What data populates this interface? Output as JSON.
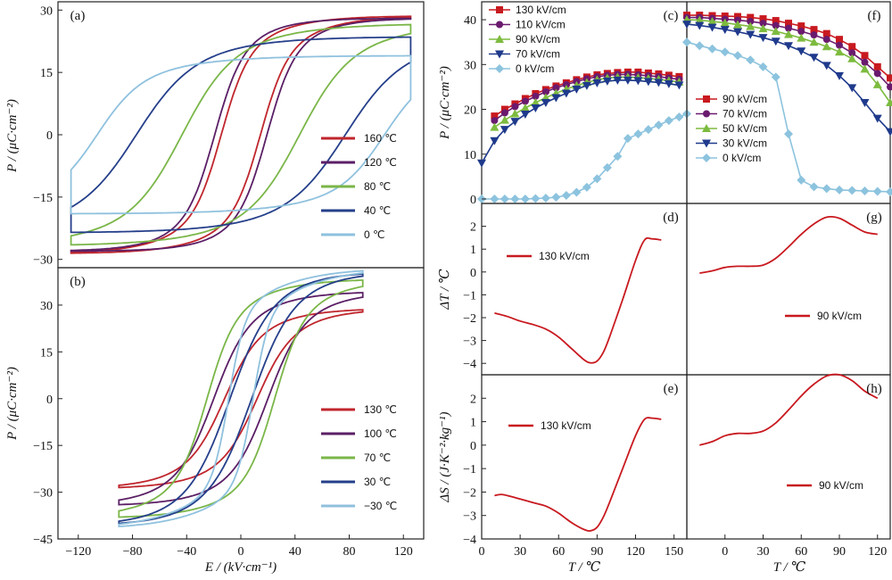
{
  "colors": {
    "c160": "#c0262d",
    "c120": "#5b1f66",
    "c80": "#7ab648",
    "c40": "#253f8a",
    "c0": "#8fc1de",
    "red": "#c8191f",
    "purple": "#6a1a6e",
    "green": "#7dbb3f",
    "navy": "#1f3a8c",
    "lightblue": "#8cc3de"
  },
  "chart_data": [
    {
      "id": "a",
      "type": "line",
      "panel_label": "(a)",
      "xlim": [
        -140,
        140
      ],
      "ylim": [
        -32,
        32
      ],
      "xticks": [],
      "yticks": [
        "−30",
        "−15",
        "0",
        "15",
        "30"
      ],
      "ytick_values": [
        -30,
        -15,
        0,
        15,
        30
      ],
      "ylabel": "P / (μC·cm⁻²)",
      "xlabel": "",
      "legend": {
        "position": "lower-right"
      },
      "series": [
        {
          "name": "160 ℃",
          "color": "#c0262d",
          "emax": 130,
          "pmax": 28.5,
          "ec": 15,
          "w": 5,
          "k": 0.03,
          "bg": 0.0
        },
        {
          "name": "120 ℃",
          "color": "#5b1f66",
          "emax": 130,
          "pmax": 28.0,
          "ec": 20,
          "w": 5,
          "k": 0.035,
          "bg": 0.0
        },
        {
          "name": "80 ℃",
          "color": "#7ab648",
          "emax": 130,
          "pmax": 26.5,
          "ec": 45,
          "w": 9,
          "k": 0.02,
          "bg": 0.0
        },
        {
          "name": "40 ℃",
          "color": "#253f8a",
          "emax": 130,
          "pmax": 23.5,
          "ec": 80,
          "w": 10,
          "k": 0.02,
          "bg": 0.0
        },
        {
          "name": "0 ℃",
          "color": "#8fc1de",
          "emax": 130,
          "pmax": 19.0,
          "ec": 110,
          "w": 8,
          "k": 0.02,
          "bg": 0.0
        }
      ]
    },
    {
      "id": "b",
      "type": "line",
      "panel_label": "(b)",
      "xlim": [
        -135,
        135
      ],
      "ylim": [
        -45,
        42
      ],
      "xticks": [
        "−120",
        "−80",
        "−40",
        "0",
        "40",
        "80",
        "120"
      ],
      "xtick_values": [
        -120,
        -80,
        -40,
        0,
        40,
        80,
        120
      ],
      "yticks": [
        "−45",
        "−30",
        "−15",
        "0",
        "15",
        "30"
      ],
      "ytick_values": [
        -45,
        -30,
        -15,
        0,
        15,
        30
      ],
      "xlabel": "E / (kV·cm⁻¹)",
      "ylabel": "P / (μC·cm⁻²)",
      "legend": {
        "position": "lower-right"
      },
      "series": [
        {
          "name": "130 ℃",
          "color": "#c0262d",
          "emax": 90,
          "pmax": 28.5,
          "ec": 12,
          "w": 6,
          "k": 0.03,
          "bg": 0.1
        },
        {
          "name": "100 ℃",
          "color": "#5b1f66",
          "emax": 90,
          "pmax": 34.0,
          "ec": 20,
          "w": 6,
          "k": 0.03,
          "bg": 0.1
        },
        {
          "name": "70 ℃",
          "color": "#7ab648",
          "emax": 90,
          "pmax": 38.0,
          "ec": 25,
          "w": 5,
          "k": 0.03,
          "bg": 0.05
        },
        {
          "name": "30 ℃",
          "color": "#253f8a",
          "emax": 90,
          "pmax": 40.0,
          "ec": 8,
          "w": 7,
          "k": 0.03,
          "bg": 0.05
        },
        {
          "name": "−30 ℃",
          "color": "#8fc1de",
          "emax": 90,
          "pmax": 41.0,
          "ec": 9,
          "w": 3,
          "k": 0.03,
          "bg": 0.0
        }
      ]
    },
    {
      "id": "c",
      "type": "line",
      "panel_label": "(c)",
      "xlim": [
        0,
        160
      ],
      "ylim": [
        -1,
        44
      ],
      "xticks": [],
      "yticks": [
        "0",
        "10",
        "20",
        "30",
        "40"
      ],
      "ytick_values": [
        0,
        10,
        20,
        30,
        40
      ],
      "ylabel": "P / (μC·cm⁻²)",
      "legend": {
        "position": "top-left"
      },
      "series": [
        {
          "name": "130 kV/cm",
          "color": "#c8191f",
          "marker": "square",
          "x": [
            10,
            18,
            26,
            34,
            42,
            50,
            58,
            66,
            74,
            82,
            90,
            98,
            106,
            114,
            122,
            130,
            138,
            146,
            154
          ],
          "y": [
            18.5,
            20.0,
            21.2,
            22.4,
            23.5,
            24.4,
            25.2,
            25.9,
            26.6,
            27.2,
            27.7,
            28.0,
            28.2,
            28.3,
            28.3,
            28.1,
            27.9,
            27.6,
            27.3
          ]
        },
        {
          "name": "110 kV/cm",
          "color": "#6a1a6e",
          "marker": "circle",
          "x": [
            10,
            18,
            26,
            34,
            42,
            50,
            58,
            66,
            74,
            82,
            90,
            98,
            106,
            114,
            122,
            130,
            138,
            146,
            154
          ],
          "y": [
            17.5,
            19.2,
            20.6,
            21.8,
            22.9,
            23.9,
            24.8,
            25.5,
            26.2,
            26.8,
            27.3,
            27.6,
            27.8,
            27.8,
            27.7,
            27.5,
            27.3,
            27.0,
            26.7
          ]
        },
        {
          "name": "90 kV/cm",
          "color": "#7dbb3f",
          "marker": "triangle-up",
          "x": [
            10,
            18,
            26,
            34,
            42,
            50,
            58,
            66,
            74,
            82,
            90,
            98,
            106,
            114,
            122,
            130,
            138,
            146,
            154
          ],
          "y": [
            16.0,
            17.6,
            19.0,
            20.3,
            21.5,
            22.6,
            23.6,
            24.5,
            25.3,
            26.0,
            26.6,
            27.0,
            27.2,
            27.2,
            27.1,
            26.9,
            26.7,
            26.4,
            26.1
          ]
        },
        {
          "name": "70 kV/cm",
          "color": "#1f3a8c",
          "marker": "triangle-down",
          "x": [
            0,
            10,
            18,
            26,
            34,
            42,
            50,
            58,
            66,
            74,
            82,
            90,
            98,
            106,
            114,
            122,
            130,
            138,
            146,
            154
          ],
          "y": [
            8.0,
            13.0,
            15.5,
            17.3,
            18.9,
            20.3,
            21.5,
            22.6,
            23.6,
            24.5,
            25.3,
            25.9,
            26.3,
            26.5,
            26.5,
            26.4,
            26.2,
            26.0,
            25.7,
            25.4
          ]
        },
        {
          "name": "0 kV/cm",
          "color": "#8cc3de",
          "marker": "diamond",
          "x": [
            0,
            10,
            18,
            26,
            34,
            42,
            50,
            58,
            66,
            74,
            82,
            90,
            98,
            106,
            114,
            122,
            130,
            138,
            146,
            154,
            160
          ],
          "y": [
            0.0,
            0.0,
            0.0,
            0.0,
            0.0,
            0.1,
            0.2,
            0.4,
            0.8,
            1.5,
            2.6,
            4.5,
            7.0,
            9.5,
            13.5,
            14.5,
            15.5,
            16.5,
            17.5,
            18.3,
            19.0
          ]
        }
      ]
    },
    {
      "id": "f",
      "type": "line",
      "panel_label": "(f)",
      "xlim": [
        -30,
        130
      ],
      "ylim": [
        -1,
        44
      ],
      "xticks": [],
      "yticks": [],
      "legend": {
        "position": "center-left"
      },
      "series": [
        {
          "name": "90 kV/cm",
          "color": "#c8191f",
          "marker": "square",
          "x": [
            -30,
            -20,
            -10,
            0,
            10,
            20,
            30,
            40,
            50,
            60,
            70,
            80,
            90,
            100,
            110,
            120,
            130
          ],
          "y": [
            41.0,
            41.0,
            40.9,
            40.8,
            40.7,
            40.5,
            40.2,
            39.8,
            39.2,
            38.6,
            37.8,
            36.9,
            35.6,
            34.0,
            32.0,
            29.5,
            27.0
          ]
        },
        {
          "name": "70 kV/cm",
          "color": "#6a1a6e",
          "marker": "circle",
          "x": [
            -30,
            -20,
            -10,
            0,
            10,
            20,
            30,
            40,
            50,
            60,
            70,
            80,
            90,
            100,
            110,
            120,
            130
          ],
          "y": [
            40.5,
            40.5,
            40.3,
            40.1,
            39.9,
            39.6,
            39.2,
            38.7,
            38.1,
            37.4,
            36.6,
            35.6,
            34.3,
            32.6,
            30.5,
            28.0,
            25.0
          ]
        },
        {
          "name": "50 kV/cm",
          "color": "#7dbb3f",
          "marker": "triangle-up",
          "x": [
            -30,
            -20,
            -10,
            0,
            10,
            20,
            30,
            40,
            50,
            60,
            70,
            80,
            90,
            100,
            110,
            120,
            130
          ],
          "y": [
            40.0,
            39.9,
            39.6,
            39.3,
            38.9,
            38.5,
            38.0,
            37.4,
            36.7,
            35.9,
            35.0,
            34.0,
            32.8,
            31.3,
            29.0,
            25.5,
            21.5
          ]
        },
        {
          "name": "30 kV/cm",
          "color": "#1f3a8c",
          "marker": "triangle-down",
          "x": [
            -30,
            -20,
            -10,
            0,
            10,
            20,
            30,
            40,
            50,
            60,
            70,
            80,
            90,
            100,
            110,
            120,
            130
          ],
          "y": [
            39.0,
            38.7,
            38.3,
            37.8,
            37.3,
            36.7,
            36.0,
            35.2,
            34.2,
            33.0,
            31.6,
            29.8,
            27.5,
            24.8,
            21.5,
            18.0,
            15.0
          ]
        },
        {
          "name": "0 kV/cm",
          "color": "#8cc3de",
          "marker": "diamond",
          "x": [
            -30,
            -20,
            -10,
            0,
            10,
            20,
            30,
            40,
            50,
            60,
            70,
            80,
            90,
            100,
            110,
            120,
            130
          ],
          "y": [
            35.0,
            34.2,
            33.5,
            32.8,
            32.0,
            31.0,
            29.5,
            27.2,
            14.5,
            4.2,
            2.7,
            2.3,
            2.0,
            1.9,
            1.8,
            1.7,
            1.6
          ]
        }
      ]
    },
    {
      "id": "d",
      "type": "line",
      "panel_label": "(d)",
      "xlim": [
        0,
        160
      ],
      "ylim": [
        -4.5,
        3
      ],
      "xticks": [],
      "yticks": [
        "−4",
        "−3",
        "−2",
        "−1",
        "0",
        "1",
        "2"
      ],
      "ytick_values": [
        -4,
        -3,
        -2,
        -1,
        0,
        1,
        2
      ],
      "ylabel": "ΔT / ℃",
      "annotation": "130 kV/cm",
      "series": [
        {
          "name": "",
          "color": "#c8191f",
          "x": [
            10,
            20,
            30,
            40,
            50,
            60,
            70,
            80,
            85,
            90,
            95,
            100,
            110,
            120,
            127,
            133,
            140
          ],
          "y": [
            -1.8,
            -1.95,
            -2.15,
            -2.3,
            -2.5,
            -2.85,
            -3.35,
            -3.85,
            -3.98,
            -3.9,
            -3.5,
            -2.8,
            -1.2,
            0.5,
            1.4,
            1.45,
            1.4
          ]
        }
      ]
    },
    {
      "id": "g",
      "type": "line",
      "panel_label": "(g)",
      "xlim": [
        -30,
        130
      ],
      "ylim": [
        -4.5,
        3
      ],
      "xticks": [],
      "yticks": [],
      "annotation": "90 kV/cm",
      "series": [
        {
          "name": "",
          "color": "#c8191f",
          "x": [
            -20,
            -10,
            0,
            10,
            20,
            30,
            40,
            50,
            60,
            70,
            80,
            90,
            100,
            110,
            120
          ],
          "y": [
            -0.05,
            0.05,
            0.2,
            0.25,
            0.25,
            0.3,
            0.6,
            1.1,
            1.65,
            2.1,
            2.4,
            2.35,
            2.05,
            1.75,
            1.65
          ]
        }
      ]
    },
    {
      "id": "e",
      "type": "line",
      "panel_label": "(e)",
      "xlim": [
        0,
        160
      ],
      "ylim": [
        -4,
        3
      ],
      "xticks": [
        "0",
        "30",
        "60",
        "90",
        "120",
        "150"
      ],
      "xtick_values": [
        0,
        30,
        60,
        90,
        120,
        150
      ],
      "yticks": [
        "−4",
        "−3",
        "−2",
        "−1",
        "0",
        "1",
        "2"
      ],
      "ytick_values": [
        -4,
        -3,
        -2,
        -1,
        0,
        1,
        2
      ],
      "xlabel": "T / ℃",
      "ylabel": "ΔS / (J·K⁻²·kg⁻¹)",
      "annotation": "130 kV/cm",
      "series": [
        {
          "name": "",
          "color": "#c8191f",
          "x": [
            10,
            15,
            20,
            30,
            40,
            50,
            60,
            70,
            80,
            85,
            90,
            95,
            100,
            110,
            120,
            127,
            133,
            140
          ],
          "y": [
            -2.15,
            -2.1,
            -2.15,
            -2.3,
            -2.45,
            -2.6,
            -2.9,
            -3.3,
            -3.6,
            -3.65,
            -3.5,
            -3.05,
            -2.4,
            -1.0,
            0.4,
            1.1,
            1.15,
            1.1
          ]
        }
      ]
    },
    {
      "id": "h",
      "type": "line",
      "panel_label": "(h)",
      "xlim": [
        -30,
        130
      ],
      "ylim": [
        -4,
        3
      ],
      "xticks": [
        "0",
        "30",
        "60",
        "90",
        "120"
      ],
      "xtick_values": [
        0,
        30,
        60,
        90,
        120
      ],
      "yticks": [],
      "xlabel": "T / ℃",
      "annotation": "90 kV/cm",
      "series": [
        {
          "name": "",
          "color": "#c8191f",
          "x": [
            -20,
            -10,
            0,
            10,
            20,
            30,
            40,
            50,
            60,
            70,
            80,
            90,
            100,
            110,
            120
          ],
          "y": [
            0.0,
            0.15,
            0.4,
            0.5,
            0.5,
            0.6,
            0.95,
            1.5,
            2.1,
            2.6,
            2.95,
            3.0,
            2.75,
            2.3,
            2.0
          ]
        }
      ]
    }
  ]
}
